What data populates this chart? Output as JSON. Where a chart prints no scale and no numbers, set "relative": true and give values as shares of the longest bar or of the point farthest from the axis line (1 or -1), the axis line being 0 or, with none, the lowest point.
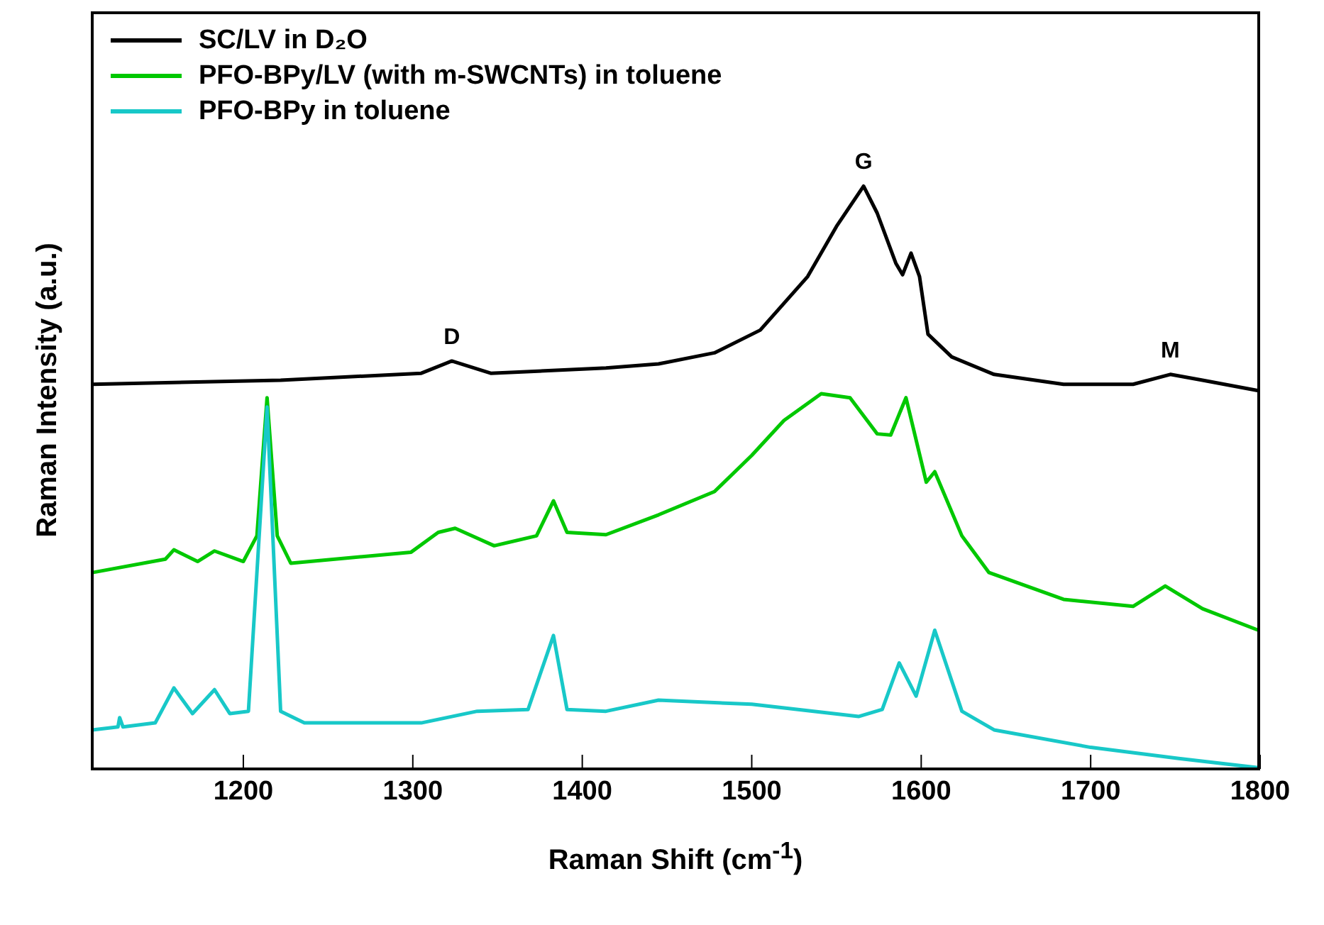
{
  "chart_data": {
    "type": "line",
    "relative": true,
    "xlabel": "Raman Shift (cm$^{-1}$)",
    "ylabel": "Raman Intensity (a.u.)",
    "xlim": [
      1110,
      1800
    ],
    "xticks": [
      1200,
      1300,
      1400,
      1500,
      1600,
      1700,
      1800
    ],
    "legend": "top left",
    "grid": false,
    "marker": "none",
    "line_style": "solid",
    "annotations": [
      {
        "text": "D",
        "x": 1323,
        "y": 0.7
      },
      {
        "text": "G",
        "x": 1566,
        "y": 1.0
      },
      {
        "text": "M",
        "x": 1747,
        "y": 0.677
      }
    ],
    "series": [
      {
        "name": "SC/LV in D₂O",
        "color": "#000000",
        "x": [
          1111,
          1222,
          1305,
          1323,
          1346,
          1414,
          1445,
          1478,
          1505,
          1519,
          1533,
          1550,
          1566,
          1574,
          1585,
          1589,
          1594,
          1599,
          1604,
          1618,
          1643,
          1684,
          1725,
          1747,
          1766,
          1799
        ],
        "values": [
          0.66,
          0.667,
          0.679,
          0.7,
          0.679,
          0.688,
          0.695,
          0.714,
          0.753,
          0.799,
          0.845,
          0.931,
          1.0,
          0.954,
          0.868,
          0.848,
          0.885,
          0.845,
          0.746,
          0.707,
          0.677,
          0.66,
          0.66,
          0.677,
          0.667,
          0.649
        ]
      },
      {
        "name": "PFO-BPy/LV (with m-SWCNTs) in toluene",
        "color": "#00c800",
        "x": [
          1111,
          1154,
          1159,
          1173,
          1183,
          1200,
          1208,
          1214,
          1220,
          1228,
          1299,
          1315,
          1325,
          1348,
          1373,
          1383,
          1391,
          1414,
          1445,
          1478,
          1500,
          1519,
          1541,
          1558,
          1574,
          1582,
          1591,
          1603,
          1608,
          1624,
          1640,
          1684,
          1725,
          1744,
          1766,
          1799
        ],
        "values": [
          0.337,
          0.36,
          0.376,
          0.356,
          0.374,
          0.356,
          0.4,
          0.637,
          0.4,
          0.353,
          0.372,
          0.406,
          0.413,
          0.383,
          0.4,
          0.46,
          0.406,
          0.402,
          0.436,
          0.476,
          0.538,
          0.598,
          0.644,
          0.637,
          0.575,
          0.573,
          0.637,
          0.492,
          0.51,
          0.4,
          0.337,
          0.291,
          0.279,
          0.314,
          0.275,
          0.238
        ]
      },
      {
        "name": "PFO-BPy in toluene",
        "color": "#18c8c8",
        "x": [
          1111,
          1126,
          1127,
          1129,
          1148,
          1159,
          1170,
          1183,
          1192,
          1203,
          1214,
          1222,
          1236,
          1305,
          1338,
          1368,
          1383,
          1391,
          1414,
          1445,
          1500,
          1563,
          1577,
          1587,
          1597,
          1608,
          1624,
          1643,
          1700,
          1752,
          1799
        ],
        "values": [
          0.067,
          0.072,
          0.088,
          0.072,
          0.079,
          0.139,
          0.095,
          0.136,
          0.095,
          0.099,
          0.621,
          0.099,
          0.079,
          0.079,
          0.099,
          0.102,
          0.229,
          0.102,
          0.099,
          0.118,
          0.111,
          0.09,
          0.102,
          0.182,
          0.125,
          0.238,
          0.099,
          0.067,
          0.037,
          0.018,
          0.002
        ]
      }
    ]
  }
}
